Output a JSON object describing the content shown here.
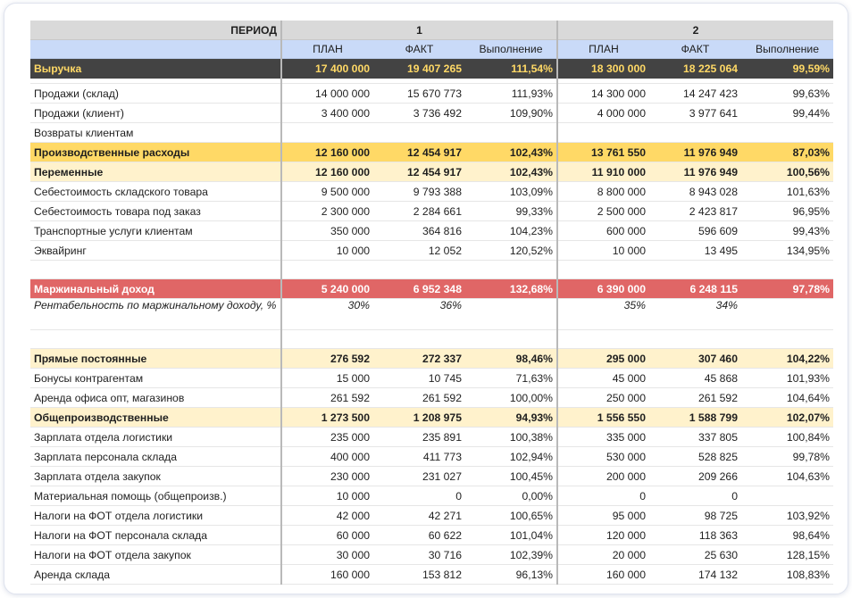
{
  "header": {
    "period_label": "ПЕРИОД",
    "period_1": "1",
    "period_2": "2",
    "col_plan": "ПЛАН",
    "col_fact": "ФАКТ",
    "col_exec": "Выполнение"
  },
  "rows": [
    {
      "label": "Выручка",
      "style": "revenue",
      "v": [
        "17 400 000",
        "19 407 265",
        "111,54%",
        "18 300 000",
        "18 225 064",
        "99,59%"
      ]
    },
    {
      "label": "",
      "style": "gap",
      "v": [
        "",
        "",
        "",
        "",
        "",
        ""
      ]
    },
    {
      "label": "Продажи (склад)",
      "style": "normal",
      "v": [
        "14 000 000",
        "15 670 773",
        "111,93%",
        "14 300 000",
        "14 247 423",
        "99,63%"
      ]
    },
    {
      "label": "Продажи (клиент)",
      "style": "normal",
      "v": [
        "3 400 000",
        "3 736 492",
        "109,90%",
        "4 000 000",
        "3 977 641",
        "99,44%"
      ]
    },
    {
      "label": "Возвраты клиентам",
      "style": "normal",
      "v": [
        "",
        "",
        "",
        "",
        "",
        ""
      ]
    },
    {
      "label": "Производственные расходы",
      "style": "prod",
      "v": [
        "12 160 000",
        "12 454 917",
        "102,43%",
        "13 761 550",
        "11 976 949",
        "87,03%"
      ]
    },
    {
      "label": "Переменные",
      "style": "sub",
      "v": [
        "12 160 000",
        "12 454 917",
        "102,43%",
        "11 910 000",
        "11 976 949",
        "100,56%"
      ]
    },
    {
      "label": "Себестоимость складского товара",
      "style": "normal",
      "v": [
        "9 500 000",
        "9 793 388",
        "103,09%",
        "8 800 000",
        "8 943 028",
        "101,63%"
      ]
    },
    {
      "label": "Себестоимость товара под заказ",
      "style": "normal",
      "v": [
        "2 300 000",
        "2 284 661",
        "99,33%",
        "2 500 000",
        "2 423 817",
        "96,95%"
      ]
    },
    {
      "label": "Транспортные услуги клиентам",
      "style": "normal",
      "v": [
        "350 000",
        "364 816",
        "104,23%",
        "600 000",
        "596 609",
        "99,43%"
      ]
    },
    {
      "label": "Эквайринг",
      "style": "normal",
      "v": [
        "10 000",
        "12 052",
        "120,52%",
        "10 000",
        "13 495",
        "134,95%"
      ]
    },
    {
      "label": "",
      "style": "empty",
      "v": [
        "",
        "",
        "",
        "",
        "",
        ""
      ]
    },
    {
      "label": "Маржинальный доход",
      "style": "margin",
      "v": [
        "5 240 000",
        "6 952 348",
        "132,68%",
        "6 390 000",
        "6 248 115",
        "97,78%"
      ]
    },
    {
      "label": "Рентабельность по маржинальному доходу, %",
      "style": "italic",
      "v": [
        "30%",
        "36%",
        "",
        "35%",
        "34%",
        ""
      ]
    },
    {
      "label": "",
      "style": "empty",
      "v": [
        "",
        "",
        "",
        "",
        "",
        ""
      ]
    },
    {
      "label": "Прямые постоянные",
      "style": "sub",
      "v": [
        "276 592",
        "272 337",
        "98,46%",
        "295 000",
        "307 460",
        "104,22%"
      ]
    },
    {
      "label": "Бонусы контрагентам",
      "style": "normal",
      "v": [
        "15 000",
        "10 745",
        "71,63%",
        "45 000",
        "45 868",
        "101,93%"
      ]
    },
    {
      "label": "Аренда офиса опт, магазинов",
      "style": "normal",
      "v": [
        "261 592",
        "261 592",
        "100,00%",
        "250 000",
        "261 592",
        "104,64%"
      ]
    },
    {
      "label": "Общепроизводственные",
      "style": "sub",
      "v": [
        "1 273 500",
        "1 208 975",
        "94,93%",
        "1 556 550",
        "1 588 799",
        "102,07%"
      ]
    },
    {
      "label": "Зарплата отдела логистики",
      "style": "normal",
      "v": [
        "235 000",
        "235 891",
        "100,38%",
        "335 000",
        "337 805",
        "100,84%"
      ]
    },
    {
      "label": "Зарплата персонала склада",
      "style": "normal",
      "v": [
        "400 000",
        "411 773",
        "102,94%",
        "530 000",
        "528 825",
        "99,78%"
      ]
    },
    {
      "label": "Зарплата отдела закупок",
      "style": "normal",
      "v": [
        "230 000",
        "231 027",
        "100,45%",
        "200 000",
        "209 266",
        "104,63%"
      ]
    },
    {
      "label": "Материальная помощь (общепроизв.)",
      "style": "normal",
      "v": [
        "10 000",
        "0",
        "0,00%",
        "0",
        "0",
        ""
      ]
    },
    {
      "label": "Налоги на ФОТ отдела логистики",
      "style": "normal",
      "v": [
        "42 000",
        "42 271",
        "100,65%",
        "95 000",
        "98 725",
        "103,92%"
      ]
    },
    {
      "label": "Налоги на ФОТ персонала склада",
      "style": "normal",
      "v": [
        "60 000",
        "60 622",
        "101,04%",
        "120 000",
        "118 363",
        "98,64%"
      ]
    },
    {
      "label": "Налоги на ФОТ отдела закупок",
      "style": "normal",
      "v": [
        "30 000",
        "30 716",
        "102,39%",
        "20 000",
        "25 630",
        "128,15%"
      ]
    },
    {
      "label": "Аренда склада",
      "style": "normal",
      "v": [
        "160 000",
        "153 812",
        "96,13%",
        "160 000",
        "174 132",
        "108,83%"
      ]
    }
  ]
}
